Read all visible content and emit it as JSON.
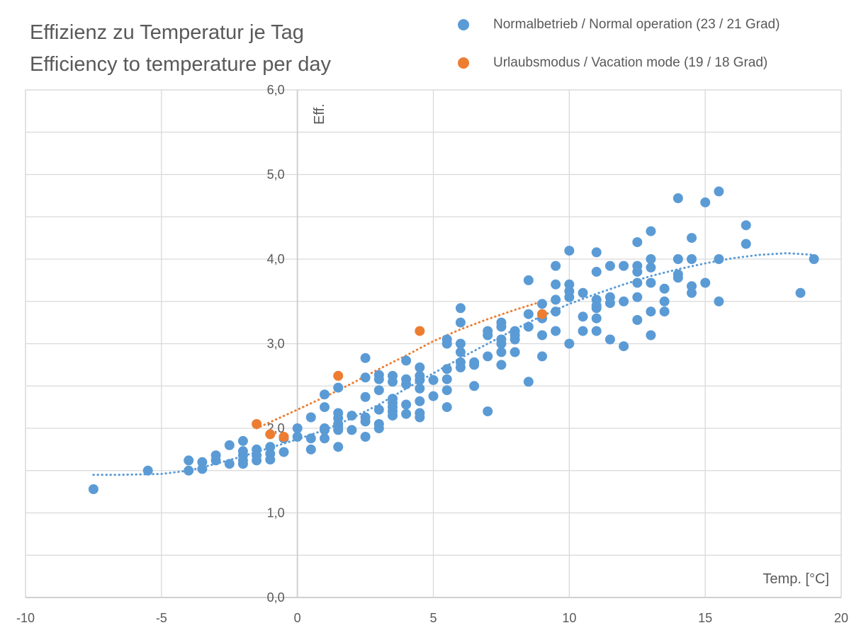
{
  "chart_data": {
    "type": "scatter",
    "title": "Effizienz zu Temperatur je Tag",
    "subtitle": "Efficiency to temperature per day",
    "xlabel": "Temp. [°C]",
    "ylabel": "Eff.",
    "xlim": [
      -10,
      20
    ],
    "ylim": [
      0,
      6
    ],
    "x_ticks": [
      -10,
      -5,
      0,
      5,
      10,
      15,
      20
    ],
    "x_tick_labels": [
      "-10",
      "-5",
      "0",
      "5",
      "10",
      "15",
      "20"
    ],
    "y_ticks": [
      0,
      1,
      2,
      3,
      4,
      5,
      6
    ],
    "y_tick_labels": [
      "0,0",
      "1,0",
      "2,0",
      "3,0",
      "4,0",
      "5,0",
      "6,0"
    ],
    "y_minor_step": 0.5,
    "x_gridline_step": 5,
    "grid": true,
    "legend_position": "top-right",
    "series": [
      {
        "name": "Normalbetrieb / Normal operation (23 / 21 Grad)",
        "color": "#5b9bd5",
        "points": [
          [
            -7.5,
            1.28
          ],
          [
            -5.5,
            1.5
          ],
          [
            -4,
            1.5
          ],
          [
            -4,
            1.62
          ],
          [
            -3.5,
            1.52
          ],
          [
            -3.5,
            1.6
          ],
          [
            -3,
            1.62
          ],
          [
            -3,
            1.68
          ],
          [
            -2.5,
            1.58
          ],
          [
            -2.5,
            1.8
          ],
          [
            -2,
            1.58
          ],
          [
            -2,
            1.62
          ],
          [
            -2,
            1.68
          ],
          [
            -2,
            1.73
          ],
          [
            -2,
            1.85
          ],
          [
            -1.5,
            1.62
          ],
          [
            -1.5,
            1.68
          ],
          [
            -1.5,
            1.75
          ],
          [
            -1,
            1.63
          ],
          [
            -1,
            1.7
          ],
          [
            -1,
            1.78
          ],
          [
            -0.5,
            1.72
          ],
          [
            -0.5,
            1.88
          ],
          [
            0,
            1.9
          ],
          [
            0,
            2.0
          ],
          [
            0.5,
            1.75
          ],
          [
            0.5,
            1.88
          ],
          [
            0.5,
            2.13
          ],
          [
            1,
            1.88
          ],
          [
            1,
            1.98
          ],
          [
            1,
            2.0
          ],
          [
            1,
            2.25
          ],
          [
            1,
            2.4
          ],
          [
            1.5,
            1.78
          ],
          [
            1.5,
            1.98
          ],
          [
            1.5,
            2.02
          ],
          [
            1.5,
            2.05
          ],
          [
            1.5,
            2.12
          ],
          [
            1.5,
            2.18
          ],
          [
            1.5,
            2.48
          ],
          [
            2,
            1.98
          ],
          [
            2,
            2.15
          ],
          [
            2.5,
            1.9
          ],
          [
            2.5,
            2.08
          ],
          [
            2.5,
            2.13
          ],
          [
            2.5,
            2.37
          ],
          [
            2.5,
            2.6
          ],
          [
            2.5,
            2.83
          ],
          [
            3,
            2.0
          ],
          [
            3,
            2.05
          ],
          [
            3,
            2.22
          ],
          [
            3,
            2.45
          ],
          [
            3,
            2.58
          ],
          [
            3,
            2.63
          ],
          [
            3.5,
            2.15
          ],
          [
            3.5,
            2.2
          ],
          [
            3.5,
            2.25
          ],
          [
            3.5,
            2.3
          ],
          [
            3.5,
            2.35
          ],
          [
            3.5,
            2.55
          ],
          [
            3.5,
            2.62
          ],
          [
            4,
            2.17
          ],
          [
            4,
            2.28
          ],
          [
            4,
            2.52
          ],
          [
            4,
            2.58
          ],
          [
            4,
            2.8
          ],
          [
            4.5,
            2.13
          ],
          [
            4.5,
            2.18
          ],
          [
            4.5,
            2.32
          ],
          [
            4.5,
            2.47
          ],
          [
            4.5,
            2.57
          ],
          [
            4.5,
            2.62
          ],
          [
            4.5,
            2.72
          ],
          [
            5,
            2.38
          ],
          [
            5,
            2.57
          ],
          [
            5.5,
            2.25
          ],
          [
            5.5,
            2.45
          ],
          [
            5.5,
            2.58
          ],
          [
            5.5,
            2.7
          ],
          [
            5.5,
            3.0
          ],
          [
            5.5,
            3.05
          ],
          [
            6,
            2.72
          ],
          [
            6,
            2.78
          ],
          [
            6,
            2.9
          ],
          [
            6,
            3.0
          ],
          [
            6,
            3.25
          ],
          [
            6,
            3.42
          ],
          [
            6.5,
            2.5
          ],
          [
            6.5,
            2.75
          ],
          [
            6.5,
            2.78
          ],
          [
            7,
            2.2
          ],
          [
            7,
            2.85
          ],
          [
            7,
            3.1
          ],
          [
            7,
            3.15
          ],
          [
            7.5,
            2.75
          ],
          [
            7.5,
            2.9
          ],
          [
            7.5,
            3.0
          ],
          [
            7.5,
            3.05
          ],
          [
            7.5,
            3.2
          ],
          [
            7.5,
            3.25
          ],
          [
            8,
            2.9
          ],
          [
            8,
            3.05
          ],
          [
            8,
            3.1
          ],
          [
            8,
            3.15
          ],
          [
            8.5,
            2.55
          ],
          [
            8.5,
            3.2
          ],
          [
            8.5,
            3.35
          ],
          [
            8.5,
            3.75
          ],
          [
            9,
            2.85
          ],
          [
            9,
            3.1
          ],
          [
            9,
            3.3
          ],
          [
            9,
            3.35
          ],
          [
            9,
            3.47
          ],
          [
            9.5,
            3.15
          ],
          [
            9.5,
            3.38
          ],
          [
            9.5,
            3.52
          ],
          [
            9.5,
            3.7
          ],
          [
            9.5,
            3.92
          ],
          [
            10,
            3.0
          ],
          [
            10,
            3.55
          ],
          [
            10,
            3.62
          ],
          [
            10,
            3.7
          ],
          [
            10,
            4.1
          ],
          [
            10.5,
            3.15
          ],
          [
            10.5,
            3.32
          ],
          [
            10.5,
            3.6
          ],
          [
            11,
            3.15
          ],
          [
            11,
            3.3
          ],
          [
            11,
            3.42
          ],
          [
            11,
            3.45
          ],
          [
            11,
            3.52
          ],
          [
            11,
            3.85
          ],
          [
            11,
            4.08
          ],
          [
            11.5,
            3.05
          ],
          [
            11.5,
            3.48
          ],
          [
            11.5,
            3.55
          ],
          [
            11.5,
            3.92
          ],
          [
            12,
            2.97
          ],
          [
            12,
            3.5
          ],
          [
            12,
            3.92
          ],
          [
            12.5,
            3.28
          ],
          [
            12.5,
            3.55
          ],
          [
            12.5,
            3.72
          ],
          [
            12.5,
            3.85
          ],
          [
            12.5,
            3.92
          ],
          [
            12.5,
            4.2
          ],
          [
            13,
            3.1
          ],
          [
            13,
            3.38
          ],
          [
            13,
            3.72
          ],
          [
            13,
            3.9
          ],
          [
            13,
            4.0
          ],
          [
            13,
            4.33
          ],
          [
            13.5,
            3.38
          ],
          [
            13.5,
            3.5
          ],
          [
            13.5,
            3.65
          ],
          [
            14,
            3.78
          ],
          [
            14,
            3.82
          ],
          [
            14,
            4.0
          ],
          [
            14,
            4.72
          ],
          [
            14.5,
            3.6
          ],
          [
            14.5,
            3.68
          ],
          [
            14.5,
            4.0
          ],
          [
            14.5,
            4.25
          ],
          [
            15,
            3.72
          ],
          [
            15,
            4.67
          ],
          [
            15.5,
            3.5
          ],
          [
            15.5,
            4.0
          ],
          [
            15.5,
            4.8
          ],
          [
            16.5,
            4.18
          ],
          [
            16.5,
            4.4
          ],
          [
            18.5,
            3.6
          ],
          [
            19,
            4.0
          ]
        ],
        "trendline": {
          "style": "dotted",
          "points": [
            [
              -7.5,
              1.45
            ],
            [
              -6.5,
              1.45
            ],
            [
              -5,
              1.46
            ],
            [
              -4,
              1.5
            ],
            [
              -3,
              1.58
            ],
            [
              -2,
              1.67
            ],
            [
              -1,
              1.77
            ],
            [
              0,
              1.87
            ],
            [
              1,
              1.98
            ],
            [
              2,
              2.12
            ],
            [
              3,
              2.28
            ],
            [
              4,
              2.47
            ],
            [
              5,
              2.65
            ],
            [
              6,
              2.83
            ],
            [
              7,
              3.0
            ],
            [
              8,
              3.17
            ],
            [
              9,
              3.33
            ],
            [
              10,
              3.47
            ],
            [
              11,
              3.59
            ],
            [
              12,
              3.7
            ],
            [
              13,
              3.8
            ],
            [
              14,
              3.88
            ],
            [
              15,
              3.95
            ],
            [
              16,
              4.01
            ],
            [
              17,
              4.05
            ],
            [
              18,
              4.07
            ],
            [
              19,
              4.05
            ]
          ]
        }
      },
      {
        "name": "Urlaubsmodus / Vacation mode (19 / 18 Grad)",
        "color": "#ed7d31",
        "points": [
          [
            -1.5,
            2.05
          ],
          [
            -1,
            1.93
          ],
          [
            -0.5,
            1.9
          ],
          [
            1.5,
            2.62
          ],
          [
            4.5,
            3.15
          ],
          [
            9,
            3.35
          ]
        ],
        "trendline": {
          "style": "dotted",
          "points": [
            [
              -1.5,
              2.0
            ],
            [
              0,
              2.22
            ],
            [
              1,
              2.37
            ],
            [
              2,
              2.53
            ],
            [
              3,
              2.7
            ],
            [
              4,
              2.86
            ],
            [
              5,
              3.03
            ],
            [
              6,
              3.17
            ],
            [
              7,
              3.29
            ],
            [
              8,
              3.4
            ],
            [
              9,
              3.5
            ]
          ]
        }
      }
    ]
  }
}
